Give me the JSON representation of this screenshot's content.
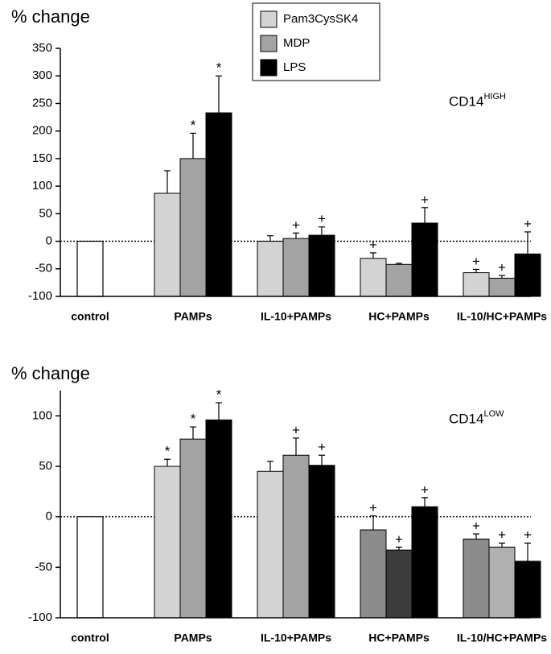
{
  "chart_data": [
    {
      "type": "bar",
      "y_label": "% change",
      "panel_label": "CD14",
      "panel_label_sup": "HIGH",
      "categories": [
        "control",
        "PAMPs",
        "IL-10+PAMPs",
        "HC+PAMPs",
        "IL-10/HC+PAMPs"
      ],
      "control_value": 0,
      "control_color": "#ffffff",
      "ylim": [
        -100,
        350
      ],
      "yticks": [
        -100,
        -50,
        0,
        50,
        100,
        150,
        200,
        250,
        300,
        350
      ],
      "series": [
        {
          "name": "Pam3CysSK4",
          "color": "#d3d3d3",
          "values": [
            null,
            87,
            0,
            -31,
            -57
          ],
          "errors": [
            null,
            41,
            10,
            10,
            6
          ],
          "markers": [
            null,
            null,
            null,
            "+",
            "+"
          ]
        },
        {
          "name": "MDP",
          "color": "#a3a3a3",
          "values": [
            null,
            150,
            5,
            -42,
            -67
          ],
          "errors": [
            null,
            46,
            10,
            2,
            5
          ],
          "markers": [
            null,
            "*",
            "+",
            null,
            "+"
          ]
        },
        {
          "name": "LPS",
          "color": "#000000",
          "values": [
            null,
            233,
            11,
            33,
            -23
          ],
          "errors": [
            null,
            67,
            15,
            28,
            40
          ],
          "markers": [
            null,
            "*",
            "+",
            "+",
            "+"
          ]
        }
      ]
    },
    {
      "type": "bar",
      "y_label": "% change",
      "panel_label": "CD14",
      "panel_label_sup": "LOW",
      "categories": [
        "control",
        "PAMPs",
        "IL-10+PAMPs",
        "HC+PAMPs",
        "IL-10/HC+PAMPs"
      ],
      "control_value": 0,
      "control_color": "#ffffff",
      "ylim": [
        -100,
        125
      ],
      "yticks": [
        -100,
        -50,
        0,
        50,
        100
      ],
      "series": [
        {
          "colors": [
            null,
            "#d3d3d3",
            "#d3d3d3",
            "#8c8c8c",
            "#8c8c8c"
          ],
          "values": [
            null,
            50,
            45,
            -13,
            -22
          ],
          "errors": [
            null,
            7,
            10,
            14,
            5
          ],
          "markers": [
            null,
            "*",
            null,
            "+",
            "+"
          ]
        },
        {
          "colors": [
            null,
            "#a3a3a3",
            "#a3a3a3",
            "#3c3c3c",
            "#b0b0b0"
          ],
          "values": [
            null,
            77,
            61,
            -33,
            -30
          ],
          "errors": [
            null,
            12,
            17,
            3,
            4
          ],
          "markers": [
            null,
            "*",
            "+",
            "+",
            "+"
          ]
        },
        {
          "colors": [
            null,
            "#000000",
            "#000000",
            "#000000",
            "#000000"
          ],
          "values": [
            null,
            96,
            51,
            10,
            -44
          ],
          "errors": [
            null,
            17,
            10,
            9,
            18
          ],
          "markers": [
            null,
            "*",
            "+",
            "+",
            "+"
          ]
        }
      ]
    }
  ]
}
